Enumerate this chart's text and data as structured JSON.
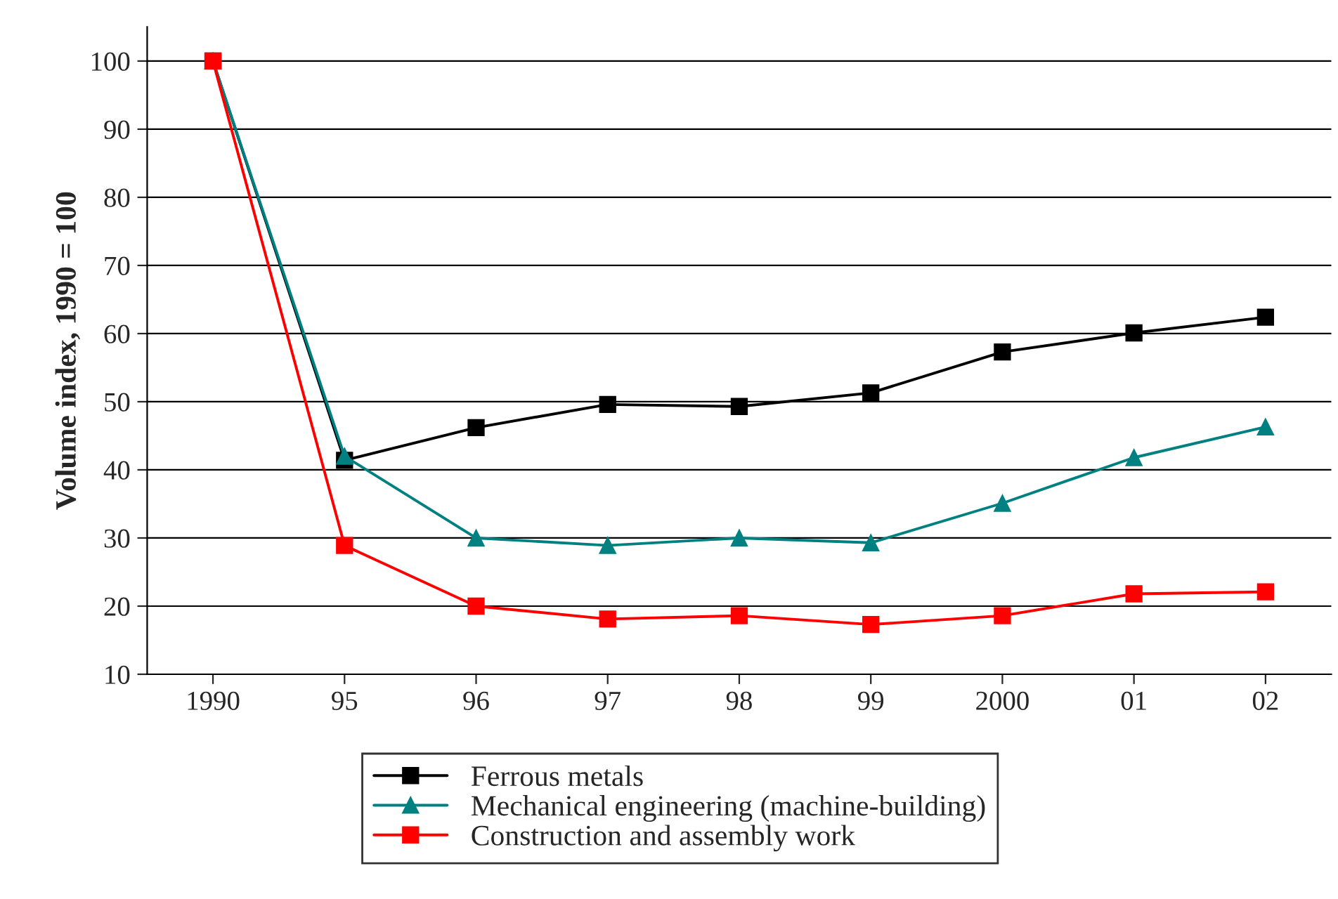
{
  "chart_data": {
    "type": "line",
    "ylabel": "Volume index, 1990 = 100",
    "categories": [
      "1990",
      "95",
      "96",
      "97",
      "98",
      "99",
      "2000",
      "01",
      "02"
    ],
    "series": [
      {
        "name": "Ferrous metals",
        "color": "#000000",
        "marker": "square",
        "values": [
          100,
          41.4,
          46.2,
          49.6,
          49.3,
          51.3,
          57.3,
          60.1,
          62.4
        ]
      },
      {
        "name": "Mechanical engineering (machine-building)",
        "color": "#008080",
        "marker": "triangle",
        "values": [
          100,
          42.0,
          30.0,
          28.9,
          30.0,
          29.3,
          35.1,
          41.8,
          46.3
        ]
      },
      {
        "name": "Construction and assembly work",
        "color": "#ff0000",
        "marker": "square",
        "values": [
          100,
          28.9,
          20.0,
          18.1,
          18.6,
          17.3,
          18.6,
          21.8,
          22.1
        ]
      }
    ],
    "ylim": [
      10,
      105
    ],
    "yticks": [
      10,
      20,
      30,
      40,
      50,
      60,
      70,
      80,
      90,
      100
    ],
    "grid": "y",
    "legend": "bottom",
    "line_style": "solid"
  }
}
